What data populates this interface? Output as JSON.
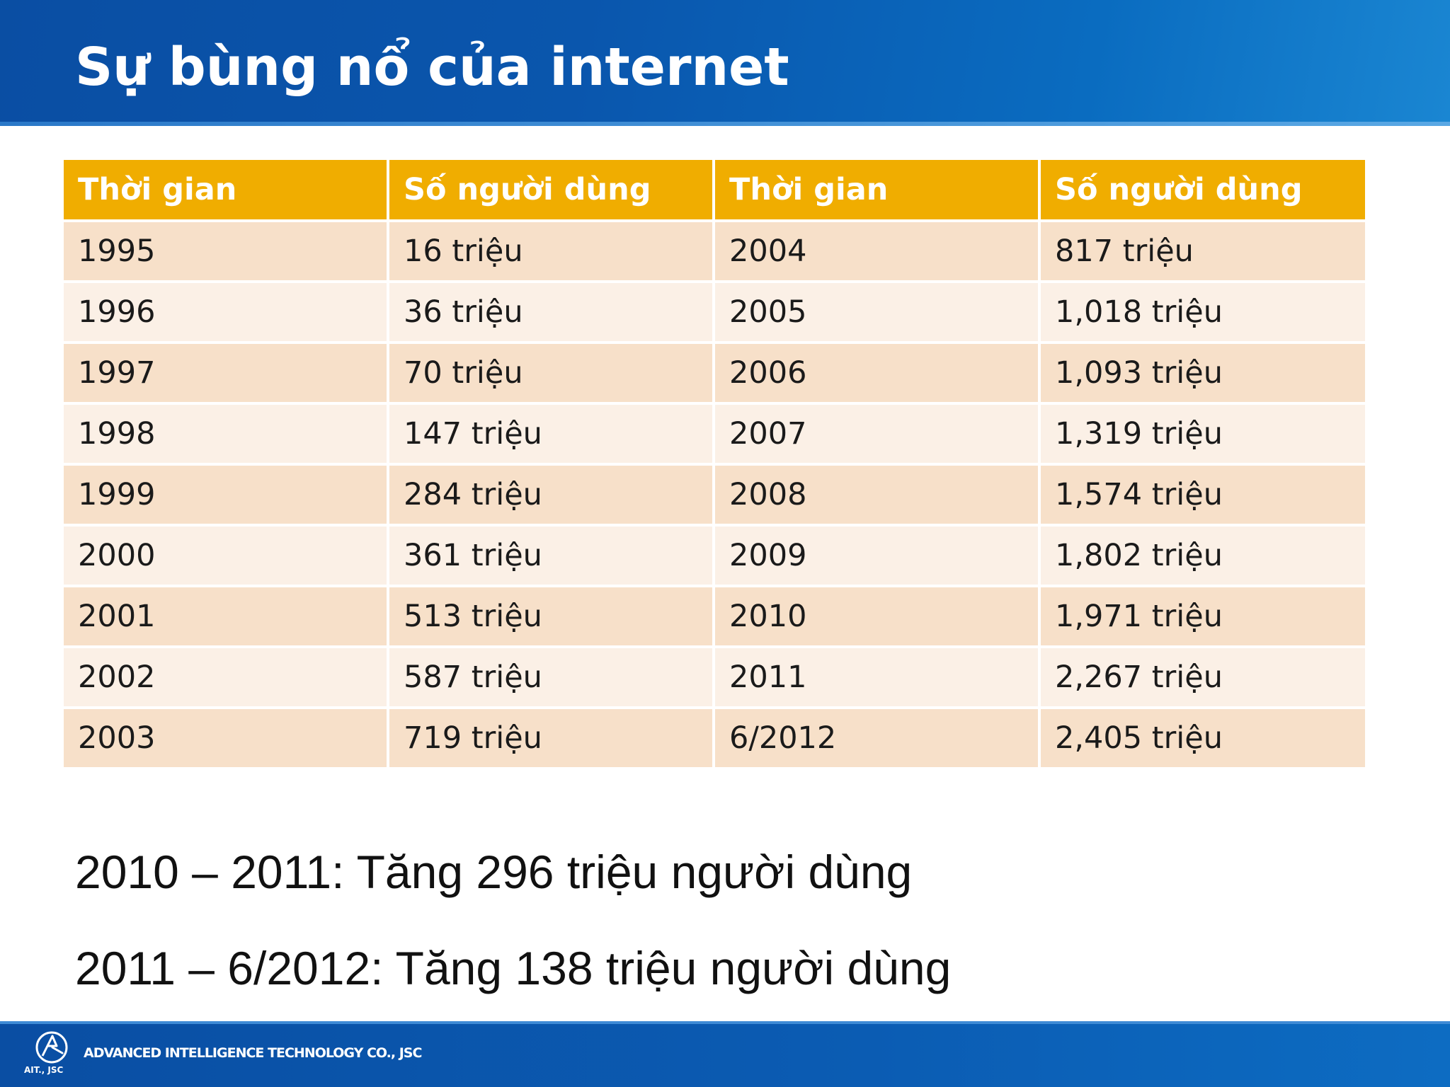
{
  "slide": {
    "title": "Sự bùng nổ của internet"
  },
  "table": {
    "headers": [
      "Thời gian",
      "Số người dùng",
      "Thời gian",
      "Số người dùng"
    ],
    "rows": [
      [
        "1995",
        "16 triệu",
        "2004",
        "817 triệu"
      ],
      [
        "1996",
        "36 triệu",
        "2005",
        "1,018 triệu"
      ],
      [
        "1997",
        "70 triệu",
        "2006",
        "1,093 triệu"
      ],
      [
        "1998",
        "147 triệu",
        "2007",
        "1,319 triệu"
      ],
      [
        "1999",
        "284 triệu",
        "2008",
        "1,574 triệu"
      ],
      [
        "2000",
        "361 triệu",
        "2009",
        "1,802 triệu"
      ],
      [
        "2001",
        "513 triệu",
        "2010",
        "1,971 triệu"
      ],
      [
        "2002",
        "587 triệu",
        "2011",
        "2,267 triệu"
      ],
      [
        "2003",
        "719 triệu",
        "6/2012",
        "2,405 triệu"
      ]
    ]
  },
  "notes": [
    "2010 – 2011: Tăng 296 triệu người dùng",
    "2011 – 6/2012: Tăng 138 triệu người dùng"
  ],
  "footer": {
    "company_name": "ADVANCED INTELLIGENCE TECHNOLOGY CO., JSC",
    "logo_caption": "AIT., JSC"
  },
  "colors": {
    "header_band": "#0a56ad",
    "table_header": "#f0ad00",
    "row_odd": "#f7e0c9",
    "row_even": "#fbf0e6",
    "footer_band": "#0b5cb3"
  }
}
